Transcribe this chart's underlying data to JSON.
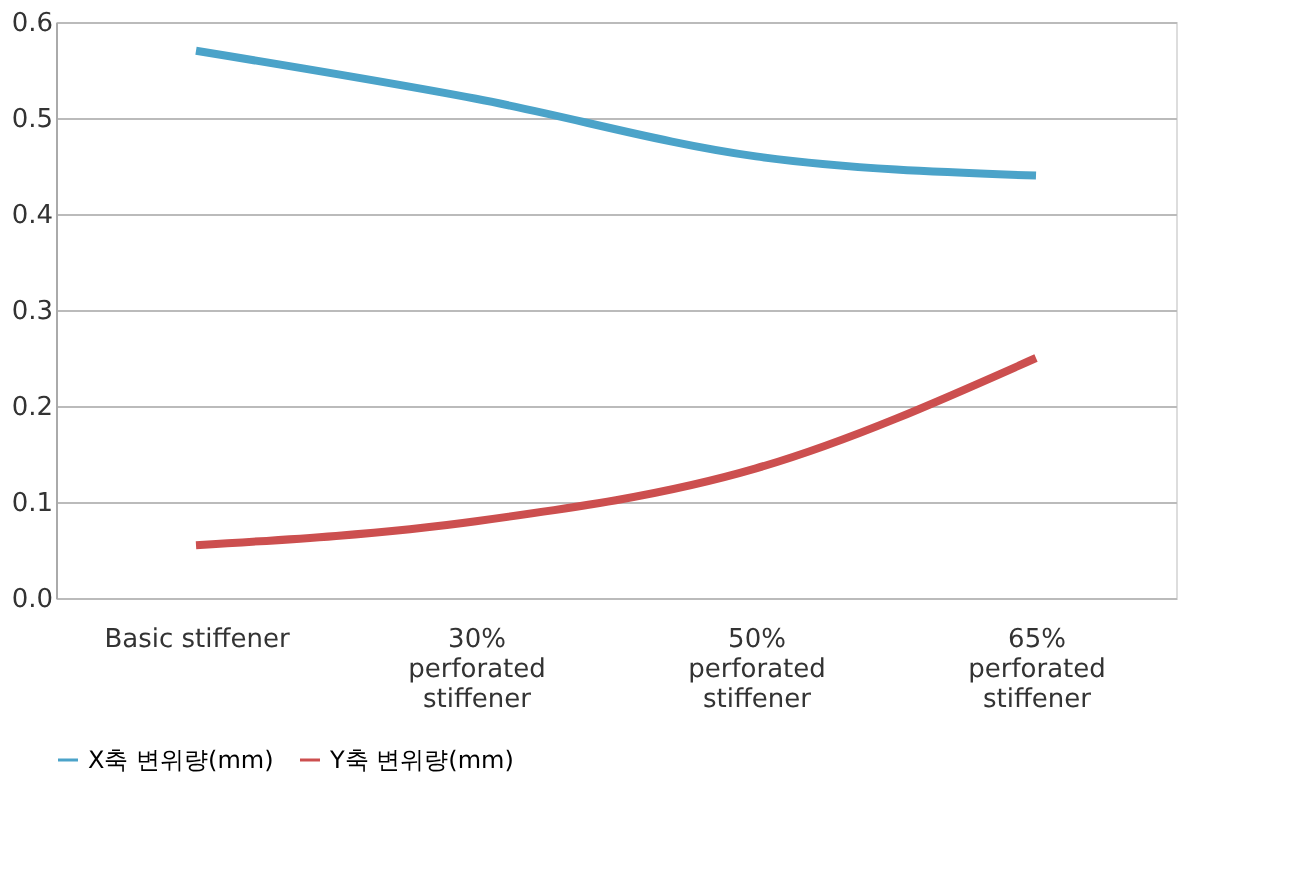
{
  "chart_data": {
    "type": "line",
    "categories": [
      "Basic stiffener",
      "30%\nperforated\nstiffener",
      "50%\nperforated\nstiffener",
      "65%\nperforated\nstiffener"
    ],
    "series": [
      {
        "name": "X축 변위량(mm)",
        "color": "#4ba3c9",
        "values": [
          0.57,
          0.52,
          0.46,
          0.44
        ]
      },
      {
        "name": "Y축 변위량(mm)",
        "color": "#cc4f4f",
        "values": [
          0.055,
          0.08,
          0.135,
          0.25
        ]
      }
    ],
    "ylim": [
      0,
      0.6
    ],
    "yticks": [
      {
        "value": 0,
        "label": "0.0"
      },
      0.1,
      0.2,
      0.3,
      0.4,
      0.5,
      0.6
    ],
    "grid": "y",
    "legend": "bottom",
    "marker": "none",
    "line_style": "solid"
  }
}
